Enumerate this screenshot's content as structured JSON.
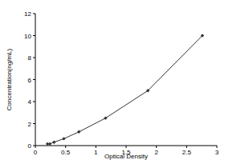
{
  "chart_data": {
    "type": "line",
    "x_label": "Optical Density",
    "y_label": "Concentration(ng/mL)",
    "x": [
      0.2,
      0.24,
      0.31,
      0.47,
      0.72,
      1.16,
      1.86,
      2.76
    ],
    "values": [
      0.156,
      0.156,
      0.3125,
      0.625,
      1.25,
      2.5,
      5,
      10
    ],
    "xlim": [
      0,
      3
    ],
    "xticks": [
      0,
      0.5,
      1,
      1.5,
      2,
      2.5,
      3
    ],
    "ylim": [
      0,
      12
    ],
    "yticks": [
      0,
      2,
      4,
      6,
      8,
      10,
      12
    ],
    "color": "#333333",
    "marker": "diamond",
    "grid": false
  }
}
